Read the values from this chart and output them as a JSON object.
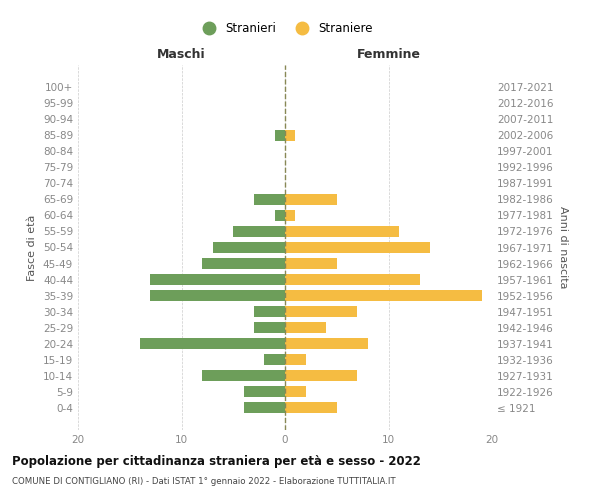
{
  "age_groups": [
    "100+",
    "95-99",
    "90-94",
    "85-89",
    "80-84",
    "75-79",
    "70-74",
    "65-69",
    "60-64",
    "55-59",
    "50-54",
    "45-49",
    "40-44",
    "35-39",
    "30-34",
    "25-29",
    "20-24",
    "15-19",
    "10-14",
    "5-9",
    "0-4"
  ],
  "birth_years": [
    "≤ 1921",
    "1922-1926",
    "1927-1931",
    "1932-1936",
    "1937-1941",
    "1942-1946",
    "1947-1951",
    "1952-1956",
    "1957-1961",
    "1962-1966",
    "1967-1971",
    "1972-1976",
    "1977-1981",
    "1982-1986",
    "1987-1991",
    "1992-1996",
    "1997-2001",
    "2002-2006",
    "2007-2011",
    "2012-2016",
    "2017-2021"
  ],
  "maschi": [
    0,
    0,
    0,
    1,
    0,
    0,
    0,
    3,
    1,
    5,
    7,
    8,
    13,
    13,
    3,
    3,
    14,
    2,
    8,
    4,
    4
  ],
  "femmine": [
    0,
    0,
    0,
    1,
    0,
    0,
    0,
    5,
    1,
    11,
    14,
    5,
    13,
    19,
    7,
    4,
    8,
    2,
    7,
    2,
    5
  ],
  "color_maschi": "#6d9e5a",
  "color_femmine": "#f5bc42",
  "title": "Popolazione per cittadinanza straniera per età e sesso - 2022",
  "subtitle": "COMUNE DI CONTIGLIANO (RI) - Dati ISTAT 1° gennaio 2022 - Elaborazione TUTTITALIA.IT",
  "xlabel_left": "Maschi",
  "xlabel_right": "Femmine",
  "ylabel_left": "Fasce di età",
  "ylabel_right": "Anni di nascita",
  "legend_stranieri": "Stranieri",
  "legend_straniere": "Straniere",
  "xlim": 20,
  "background_color": "#ffffff",
  "grid_color": "#cccccc"
}
